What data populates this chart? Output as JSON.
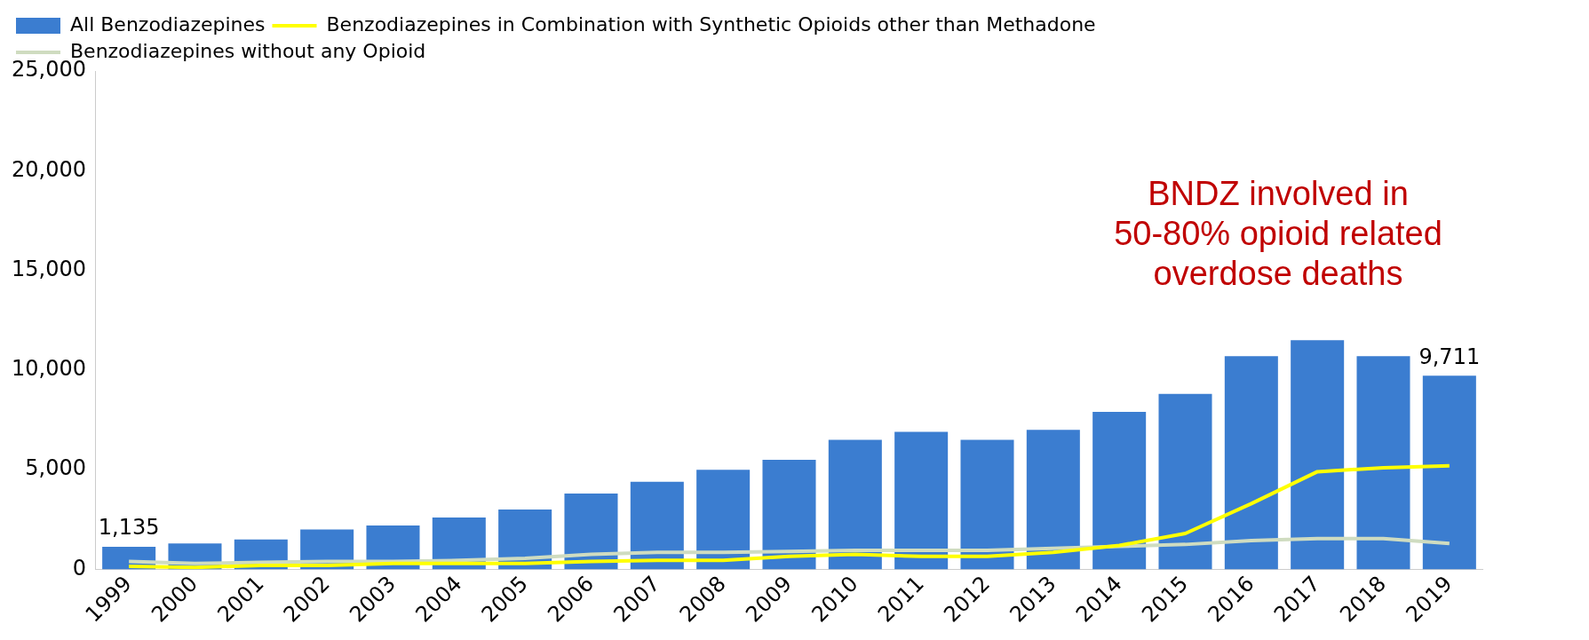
{
  "chart_data": {
    "type": "bar",
    "categories": [
      "1999",
      "2000",
      "2001",
      "2002",
      "2003",
      "2004",
      "2005",
      "2006",
      "2007",
      "2008",
      "2009",
      "2010",
      "2011",
      "2012",
      "2013",
      "2014",
      "2015",
      "2016",
      "2017",
      "2018",
      "2019"
    ],
    "series": [
      {
        "name": "All Benzodiazepines",
        "color": "#3b7dd0",
        "values": [
          1135,
          1300,
          1500,
          2000,
          2200,
          2600,
          3000,
          3800,
          4400,
          5000,
          5500,
          6500,
          6900,
          6500,
          7000,
          7900,
          8800,
          10700,
          11500,
          10700,
          9711
        ],
        "value_labels": [
          "1,135",
          null,
          null,
          null,
          null,
          null,
          null,
          null,
          null,
          null,
          null,
          null,
          null,
          null,
          null,
          null,
          null,
          null,
          null,
          null,
          "9,711"
        ]
      },
      {
        "name": "Benzodiazepines in Combination with Synthetic Opioids other than Methadone",
        "type": "line",
        "color": "#ffff00",
        "values": [
          150,
          100,
          200,
          200,
          300,
          300,
          300,
          400,
          450,
          450,
          650,
          750,
          650,
          650,
          850,
          1200,
          1800,
          3300,
          4900,
          5100,
          5200
        ]
      },
      {
        "name": "Benzodiazepines without any Opioid",
        "type": "line",
        "color": "#cfdcc0",
        "values": [
          400,
          300,
          350,
          400,
          400,
          450,
          550,
          750,
          850,
          850,
          900,
          950,
          950,
          950,
          1050,
          1150,
          1250,
          1450,
          1550,
          1550,
          1300
        ]
      }
    ],
    "ylim": [
      0,
      25000
    ],
    "yticks": [
      {
        "value": 0,
        "label": "0"
      },
      {
        "value": 5000,
        "label": "5,000"
      },
      {
        "value": 10000,
        "label": "10,000"
      },
      {
        "value": 15000,
        "label": "15,000"
      },
      {
        "value": 20000,
        "label": "20,000"
      },
      {
        "value": 25000,
        "label": "25,000"
      }
    ],
    "grid": false,
    "legend": "top left",
    "marker": "none",
    "annotations": [
      "BNDZ involved in 50-80% opioid related overdose deaths"
    ]
  }
}
